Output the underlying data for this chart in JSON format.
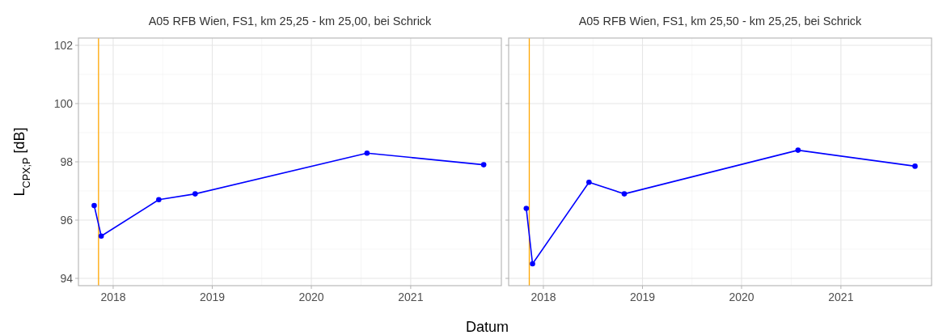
{
  "chart_data": [
    {
      "type": "line",
      "title": "A05 RFB Wien, FS1, km 25,25 - km 25,00, bei Schrick",
      "xlabel": "Datum",
      "ylabel": "L$_{CPX;P}$ [dB]",
      "marker": "circle",
      "grid": true,
      "x": [
        "2017-10-23",
        "2017-11-18",
        "2018-06-18",
        "2018-10-30",
        "2020-07-24",
        "2021-09-27"
      ],
      "series": [
        {
          "color": "#0000ff",
          "values": [
            96.5,
            95.45,
            96.7,
            96.9,
            98.3,
            97.9
          ]
        }
      ],
      "xlim": [
        "2017-08-26",
        "2021-12-01"
      ],
      "xticks": [
        "2018",
        "2019",
        "2020",
        "2021"
      ],
      "ylim": [
        93.75,
        102.25
      ],
      "yticks": [
        94,
        96,
        98,
        100,
        102
      ],
      "ref_lines": [
        {
          "axis": "x",
          "value": "2017-11-08",
          "color": "#ffa500"
        }
      ]
    },
    {
      "type": "line",
      "title": "A05 RFB Wien, FS1, km 25,50 - km 25,25, bei Schrick",
      "marker": "circle",
      "grid": true,
      "tick_labels": "x",
      "x": [
        "2017-10-30",
        "2017-11-22",
        "2018-06-18",
        "2018-10-26",
        "2020-07-27",
        "2021-10-01"
      ],
      "series": [
        {
          "color": "#0000ff",
          "values": [
            96.4,
            94.5,
            97.3,
            96.9,
            98.4,
            97.85
          ]
        }
      ],
      "xlim": [
        "2017-08-26",
        "2021-12-01"
      ],
      "xticks": [
        "2018",
        "2019",
        "2020",
        "2021"
      ],
      "ylim": [
        93.75,
        102.25
      ],
      "yticks": [
        94,
        96,
        98,
        100,
        102
      ],
      "ref_lines": [
        {
          "axis": "x",
          "value": "2017-11-10",
          "color": "#ffa500"
        }
      ]
    }
  ]
}
